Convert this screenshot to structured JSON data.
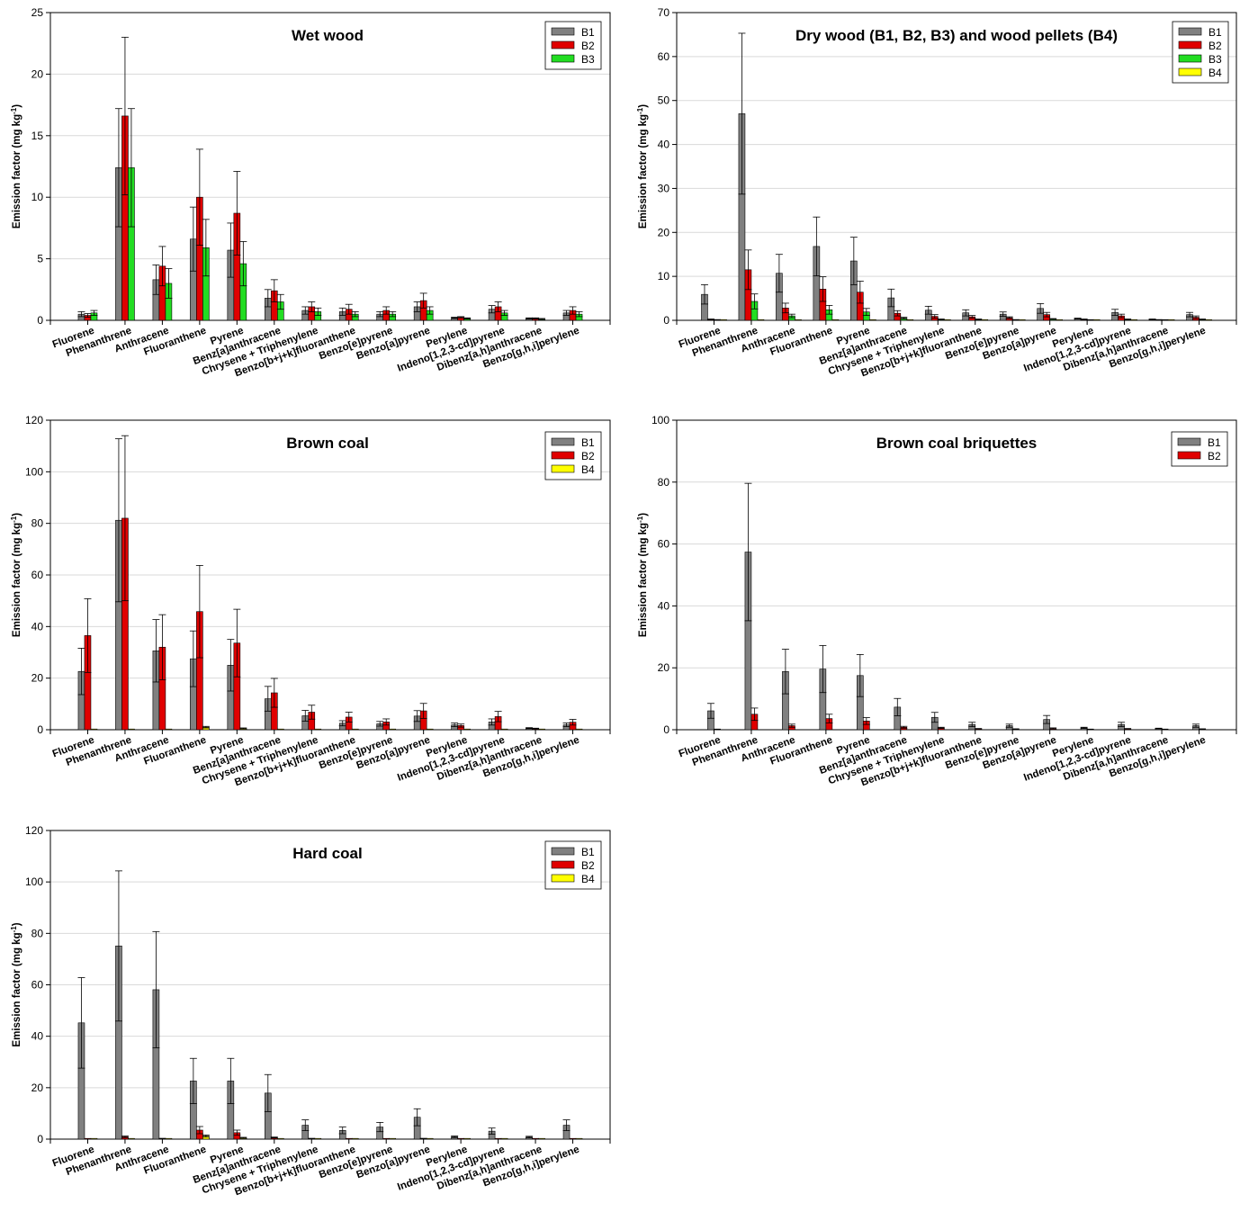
{
  "chart_data": [
    {
      "type": "bar",
      "title": "Wet wood",
      "ylabel": "Emission factor (mg kg-1)",
      "ylim": [
        0,
        25
      ],
      "yticks": [
        0,
        5,
        10,
        15,
        20,
        25
      ],
      "grid": true,
      "legend_position": "top-right",
      "categories": [
        "Fluorene",
        "Phenanthrene",
        "Anthracene",
        "Fluoranthene",
        "Pyrene",
        "Benz[a]anthracene",
        "Chrysene + Triphenylene",
        "Benzo[b+j+k]fluoranthene",
        "Benzo[e]pyrene",
        "Benzo[a]pyrene",
        "Perylene",
        "Indeno[1,2,3-cd]pyrene",
        "Dibenz[a,h]anthracene",
        "Benzo[g,h,i]perylene"
      ],
      "series": [
        {
          "name": "B1",
          "color": "#808080",
          "values": [
            0.5,
            12.4,
            3.3,
            6.6,
            5.7,
            1.8,
            0.8,
            0.7,
            0.5,
            1.1,
            0.2,
            0.9,
            0.15,
            0.6
          ],
          "errors": [
            0.2,
            4.8,
            1.2,
            2.6,
            2.2,
            0.7,
            0.3,
            0.3,
            0.2,
            0.4,
            0.05,
            0.3,
            0.05,
            0.2
          ]
        },
        {
          "name": "B2",
          "color": "#e00000",
          "values": [
            0.4,
            16.6,
            4.4,
            10.0,
            8.7,
            2.4,
            1.1,
            0.9,
            0.8,
            1.6,
            0.25,
            1.1,
            0.15,
            0.8
          ],
          "errors": [
            0.15,
            6.4,
            1.6,
            3.9,
            3.4,
            0.9,
            0.4,
            0.4,
            0.3,
            0.6,
            0.05,
            0.4,
            0.05,
            0.3
          ]
        },
        {
          "name": "B3",
          "color": "#22dd22",
          "values": [
            0.6,
            12.4,
            3.0,
            5.9,
            4.6,
            1.5,
            0.7,
            0.5,
            0.5,
            0.8,
            0.15,
            0.6,
            0.1,
            0.5
          ],
          "errors": [
            0.2,
            4.8,
            1.2,
            2.3,
            1.8,
            0.6,
            0.3,
            0.2,
            0.2,
            0.3,
            0.05,
            0.2,
            0.05,
            0.2
          ]
        }
      ]
    },
    {
      "type": "bar",
      "title": "Dry wood (B1, B2, B3) and wood pellets (B4)",
      "ylabel": "Emission factor (mg kg-1)",
      "ylim": [
        0,
        70
      ],
      "yticks": [
        0,
        10,
        20,
        30,
        40,
        50,
        60,
        70
      ],
      "grid": true,
      "legend_position": "top-right",
      "categories": [
        "Fluorene",
        "Phenanthrene",
        "Anthracene",
        "Fluoranthene",
        "Pyrene",
        "Benz[a]anthracene",
        "Chrysene + Triphenylene",
        "Benzo[b+j+k]fluoranthene",
        "Benzo[e]pyrene",
        "Benzo[a]pyrene",
        "Perylene",
        "Indeno[1,2,3-cd]pyrene",
        "Dibenz[a,h]anthracene",
        "Benzo[g,h,i]perylene"
      ],
      "series": [
        {
          "name": "B1",
          "color": "#808080",
          "values": [
            5.9,
            47.0,
            10.7,
            16.8,
            13.5,
            5.1,
            2.3,
            1.7,
            1.4,
            2.7,
            0.4,
            1.8,
            0.2,
            1.3
          ],
          "errors": [
            2.2,
            18.3,
            4.3,
            6.7,
            5.4,
            2.0,
            0.9,
            0.7,
            0.5,
            1.1,
            0.1,
            0.7,
            0.1,
            0.5
          ]
        },
        {
          "name": "B2",
          "color": "#e00000",
          "values": [
            0.2,
            11.5,
            2.8,
            7.1,
            6.4,
            1.6,
            0.9,
            0.8,
            0.6,
            1.3,
            0.2,
            1.0,
            0.1,
            0.7
          ],
          "errors": [
            0.1,
            4.5,
            1.1,
            2.8,
            2.5,
            0.6,
            0.4,
            0.3,
            0.2,
            0.5,
            0.1,
            0.4,
            0.05,
            0.3
          ]
        },
        {
          "name": "B3",
          "color": "#22dd22",
          "values": [
            0.1,
            4.3,
            1.0,
            2.4,
            1.9,
            0.5,
            0.2,
            0.2,
            0.1,
            0.3,
            0.05,
            0.2,
            0.02,
            0.2
          ],
          "errors": [
            0.05,
            1.7,
            0.4,
            1.0,
            0.8,
            0.2,
            0.1,
            0.1,
            0.05,
            0.1,
            0.02,
            0.1,
            0.01,
            0.1
          ]
        },
        {
          "name": "B4",
          "color": "#ffff00",
          "values": [
            0.02,
            0.1,
            0.03,
            0.05,
            0.05,
            0.03,
            0.02,
            0.02,
            0.01,
            0.02,
            0.01,
            0.02,
            0.01,
            0.02
          ],
          "errors": [
            0,
            0,
            0,
            0,
            0,
            0,
            0,
            0,
            0,
            0,
            0,
            0,
            0,
            0
          ]
        }
      ]
    },
    {
      "type": "bar",
      "title": "Brown coal",
      "ylabel": "Emission factor (mg kg-1)",
      "ylim": [
        0,
        120
      ],
      "yticks": [
        0,
        20,
        40,
        60,
        80,
        100,
        120
      ],
      "grid": true,
      "legend_position": "top-right",
      "categories": [
        "Fluorene",
        "Phenanthrene",
        "Anthracene",
        "Fluoranthene",
        "Pyrene",
        "Benz[a]anthracene",
        "Chrysene + Triphenylene",
        "Benzo[b+j+k]fluoranthene",
        "Benzo[e]pyrene",
        "Benzo[a]pyrene",
        "Perylene",
        "Indeno[1,2,3-cd]pyrene",
        "Dibenz[a,h]anthracene",
        "Benzo[g,h,i]perylene"
      ],
      "series": [
        {
          "name": "B1",
          "color": "#808080",
          "values": [
            22.6,
            81.2,
            30.6,
            27.5,
            25.0,
            12.0,
            5.4,
            2.5,
            2.3,
            5.3,
            1.9,
            3.0,
            0.6,
            1.9
          ],
          "errors": [
            9.0,
            31.6,
            12.1,
            10.8,
            10.0,
            4.8,
            2.1,
            1.0,
            0.9,
            2.1,
            0.7,
            1.2,
            0.2,
            0.7
          ]
        },
        {
          "name": "B2",
          "color": "#e00000",
          "values": [
            36.5,
            82.0,
            32.0,
            45.8,
            33.6,
            14.3,
            6.8,
            4.9,
            3.0,
            7.3,
            1.6,
            5.1,
            0.4,
            2.9
          ],
          "errors": [
            14.3,
            32.0,
            12.6,
            17.9,
            13.1,
            5.6,
            2.7,
            1.9,
            1.2,
            2.9,
            0.6,
            2.0,
            0.2,
            1.1
          ]
        },
        {
          "name": "B4",
          "color": "#ffff00",
          "values": [
            0.1,
            0.2,
            0.1,
            1.0,
            0.5,
            0.1,
            0.1,
            0.05,
            0.05,
            0.05,
            0.02,
            0.05,
            0.02,
            0.05
          ],
          "errors": [
            0,
            0,
            0,
            0.3,
            0.2,
            0,
            0,
            0,
            0,
            0,
            0,
            0,
            0,
            0
          ]
        }
      ]
    },
    {
      "type": "bar",
      "title": "Brown coal briquettes",
      "ylabel": "Emission factor (mg kg-1)",
      "ylim": [
        0,
        100
      ],
      "yticks": [
        0,
        20,
        40,
        60,
        80,
        100
      ],
      "grid": true,
      "legend_position": "top-right",
      "categories": [
        "Fluorene",
        "Phenanthrene",
        "Anthracene",
        "Fluoranthene",
        "Pyrene",
        "Benz[a]anthracene",
        "Chrysene + Triphenylene",
        "Benzo[b+j+k]fluoranthene",
        "Benzo[e]pyrene",
        "Benzo[a]pyrene",
        "Perylene",
        "Indeno[1,2,3-cd]pyrene",
        "Dibenz[a,h]anthracene",
        "Benzo[g,h,i]perylene"
      ],
      "series": [
        {
          "name": "B1",
          "color": "#808080",
          "values": [
            6.1,
            57.4,
            18.8,
            19.6,
            17.5,
            7.3,
            4.0,
            1.7,
            1.3,
            3.3,
            0.6,
            1.7,
            0.4,
            1.3
          ],
          "errors": [
            2.4,
            22.2,
            7.2,
            7.6,
            6.8,
            2.8,
            1.6,
            0.7,
            0.5,
            1.3,
            0.2,
            0.7,
            0.1,
            0.5
          ]
        },
        {
          "name": "B2",
          "color": "#e00000",
          "values": [
            0.1,
            5.0,
            1.3,
            3.6,
            2.8,
            0.8,
            0.6,
            0.3,
            0.2,
            0.4,
            0.1,
            0.3,
            0.05,
            0.2
          ],
          "errors": [
            0.05,
            2.0,
            0.5,
            1.4,
            1.1,
            0.3,
            0.2,
            0.1,
            0.1,
            0.2,
            0.05,
            0.1,
            0.02,
            0.1
          ]
        }
      ]
    },
    {
      "type": "bar",
      "title": "Hard coal",
      "ylabel": "Emission factor (mg kg-1)",
      "ylim": [
        0,
        120
      ],
      "yticks": [
        0,
        20,
        40,
        60,
        80,
        100,
        120
      ],
      "grid": true,
      "legend_position": "top-right",
      "categories": [
        "Fluorene",
        "Phenanthrene",
        "Anthracene",
        "Fluoranthene",
        "Pyrene",
        "Benz[a]anthracene",
        "Chrysene + Triphenylene",
        "Benzo[b+j+k]fluoranthene",
        "Benzo[e]pyrene",
        "Benzo[a]pyrene",
        "Perylene",
        "Indeno[1,2,3-cd]pyrene",
        "Dibenz[a,h]anthracene",
        "Benzo[g,h,i]perylene"
      ],
      "series": [
        {
          "name": "B1",
          "color": "#808080",
          "values": [
            45.2,
            75.1,
            58.1,
            22.6,
            22.6,
            17.9,
            5.4,
            3.4,
            4.7,
            8.5,
            0.9,
            3.1,
            0.8,
            5.4
          ],
          "errors": [
            17.6,
            29.2,
            22.6,
            8.8,
            8.8,
            7.2,
            2.1,
            1.3,
            1.8,
            3.3,
            0.3,
            1.2,
            0.3,
            2.1
          ]
        },
        {
          "name": "B2",
          "color": "#e00000",
          "values": [
            0.1,
            0.9,
            0.2,
            3.5,
            2.5,
            0.6,
            0.2,
            0.1,
            0.1,
            0.2,
            0.05,
            0.1,
            0.02,
            0.1
          ],
          "errors": [
            0,
            0.3,
            0.1,
            1.4,
            1.0,
            0.2,
            0.1,
            0,
            0,
            0.1,
            0,
            0,
            0,
            0
          ]
        },
        {
          "name": "B4",
          "color": "#ffff00",
          "values": [
            0.05,
            0.1,
            0.05,
            1.2,
            0.5,
            0.1,
            0.05,
            0.05,
            0.02,
            0.05,
            0.02,
            0.05,
            0.01,
            0.05
          ],
          "errors": [
            0,
            0,
            0,
            0.4,
            0.2,
            0,
            0,
            0,
            0,
            0,
            0,
            0,
            0,
            0
          ]
        }
      ]
    }
  ]
}
